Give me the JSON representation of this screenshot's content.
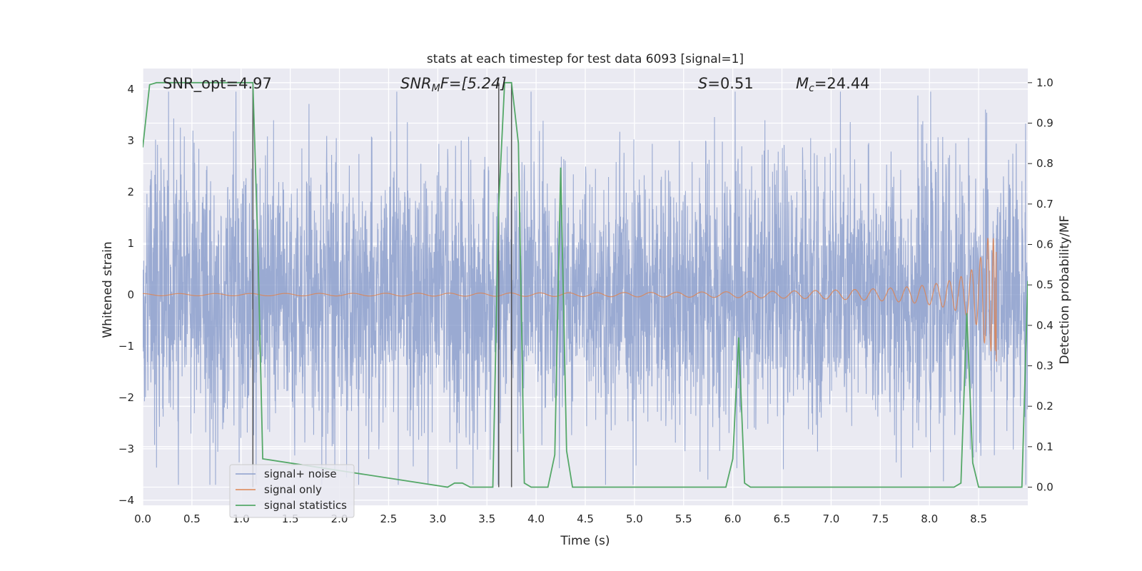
{
  "chart_data": {
    "type": "line",
    "title": "stats at each timestep for test data 6093 [signal=1]",
    "xlabel": "Time (s)",
    "ylabel_left": "Whitened strain",
    "ylabel_right": "Detection probability/MF",
    "xlim": [
      0,
      9
    ],
    "ylim_left": [
      -4.1,
      4.4
    ],
    "ylim_right": [
      -0.045,
      1.035
    ],
    "x_ticks": [
      0.0,
      0.5,
      1.0,
      1.5,
      2.0,
      2.5,
      3.0,
      3.5,
      4.0,
      4.5,
      5.0,
      5.5,
      6.0,
      6.5,
      7.0,
      7.5,
      8.0,
      8.5
    ],
    "x_tick_labels": [
      "0.0",
      "0.5",
      "1.0",
      "1.5",
      "2.0",
      "2.5",
      "3.0",
      "3.5",
      "4.0",
      "4.5",
      "5.0",
      "5.5",
      "6.0",
      "6.5",
      "7.0",
      "7.5",
      "8.0",
      "8.5"
    ],
    "y_ticks_left": [
      4,
      3,
      2,
      1,
      0,
      -1,
      -2,
      -3,
      -4
    ],
    "y_tick_labels_left": [
      "4",
      "3",
      "2",
      "1",
      "0",
      "−1",
      "−2",
      "−3",
      "−4"
    ],
    "y_ticks_right": [
      1.0,
      0.9,
      0.8,
      0.7,
      0.6,
      0.5,
      0.4,
      0.3,
      0.2,
      0.1,
      0.0
    ],
    "y_tick_labels_right": [
      "1.0",
      "0.9",
      "0.8",
      "0.7",
      "0.6",
      "0.5",
      "0.4",
      "0.3",
      "0.2",
      "0.1",
      "0.0"
    ],
    "grid": true,
    "legend_position": "lower-left",
    "annotations": {
      "snr_opt": "SNR_opt=4.97",
      "snr_mf_main": "SNR",
      "snr_mf_sub": "M",
      "snr_mf_rest": "F=[5.24]",
      "s_italic": "S",
      "s_rest": "=0.51",
      "mc_main": "M",
      "mc_sub": "c",
      "mc_rest": "=24.44"
    },
    "vertical_lines_x": [
      1.12,
      3.62,
      3.75
    ],
    "series": [
      {
        "name": "signal+ noise",
        "color": "#8c9fcc",
        "noise": {
          "t_start": 0.0,
          "t_end": 9.0,
          "std": 1.3,
          "peak_min": -3.7,
          "peak_max": 3.95
        }
      },
      {
        "name": "signal only",
        "color": "#dd8452",
        "chirp": {
          "t_start": 0.0,
          "t_merger": 8.68,
          "peak_amplitude_max": 1.1,
          "peak_amplitude_min": -1.3
        }
      },
      {
        "name": "signal statistics",
        "color": "#55a868",
        "x": [
          0.0,
          0.07,
          0.14,
          1.0,
          1.12,
          1.17,
          1.22,
          3.1,
          3.17,
          3.25,
          3.33,
          3.56,
          3.62,
          3.68,
          3.75,
          3.82,
          3.88,
          3.95,
          4.12,
          4.19,
          4.25,
          4.31,
          4.37,
          5.93,
          6.0,
          6.06,
          6.12,
          6.18,
          8.25,
          8.32,
          8.38,
          8.44,
          8.5,
          8.94,
          9.0
        ],
        "y": [
          0.84,
          0.995,
          1.0,
          1.0,
          1.0,
          0.6,
          0.07,
          0.0,
          0.01,
          0.01,
          0.0,
          0.0,
          0.7,
          1.0,
          1.0,
          0.85,
          0.01,
          0.0,
          0.0,
          0.08,
          0.79,
          0.09,
          0.0,
          0.0,
          0.07,
          0.37,
          0.01,
          0.0,
          0.0,
          0.01,
          0.43,
          0.06,
          0.0,
          0.0,
          0.51
        ]
      }
    ]
  }
}
